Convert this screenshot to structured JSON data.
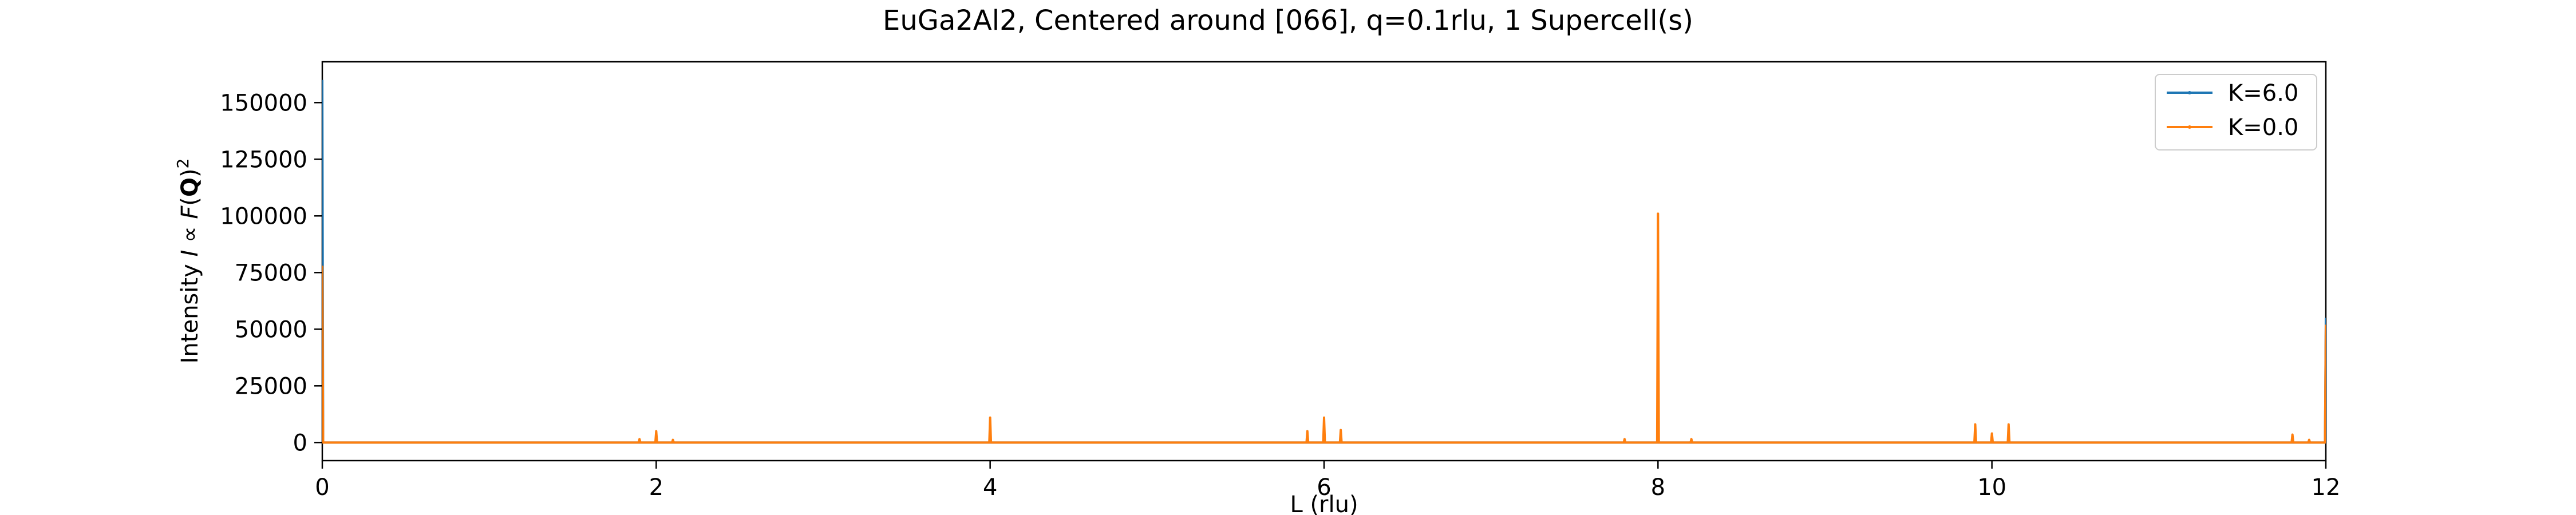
{
  "chart_data": {
    "type": "line",
    "title": "EuGa2Al2, Centered around [066], q=0.1rlu, 1 Supercell(s)",
    "xlabel": "L (rlu)",
    "ylabel_parts": {
      "prefix": "Intensity ",
      "i": "I",
      "propto": " ∝ ",
      "f": "F",
      "open": "(",
      "q": "Q",
      "close": ")",
      "power": "2"
    },
    "xlim": [
      0,
      12
    ],
    "ylim": [
      -8000,
      168000
    ],
    "x_ticks": [
      0,
      2,
      4,
      6,
      8,
      10,
      12
    ],
    "x_tick_labels": [
      "0",
      "2",
      "4",
      "6",
      "8",
      "10",
      "12"
    ],
    "y_ticks": [
      0,
      25000,
      50000,
      75000,
      100000,
      125000,
      150000
    ],
    "y_tick_labels": [
      "0",
      "25000",
      "50000",
      "75000",
      "100000",
      "125000",
      "150000"
    ],
    "grid": false,
    "legend_position": "top-right",
    "series": [
      {
        "name": "K=6.0",
        "color": "#1f77b4",
        "peaks": [
          [
            0,
            160000
          ],
          [
            12,
            55000
          ]
        ]
      },
      {
        "name": "K=0.0",
        "color": "#ff7f0e",
        "peaks": [
          [
            0,
            78000
          ],
          [
            1.9,
            1500
          ],
          [
            2.0,
            5000
          ],
          [
            2.1,
            1200
          ],
          [
            4.0,
            11000
          ],
          [
            5.9,
            5000
          ],
          [
            6.0,
            11000
          ],
          [
            6.1,
            5500
          ],
          [
            7.8,
            1500
          ],
          [
            8.0,
            101000
          ],
          [
            8.2,
            1500
          ],
          [
            9.9,
            8000
          ],
          [
            10.0,
            4000
          ],
          [
            10.1,
            8000
          ],
          [
            11.8,
            3500
          ],
          [
            11.9,
            1200
          ],
          [
            12.0,
            52000
          ]
        ]
      }
    ]
  }
}
